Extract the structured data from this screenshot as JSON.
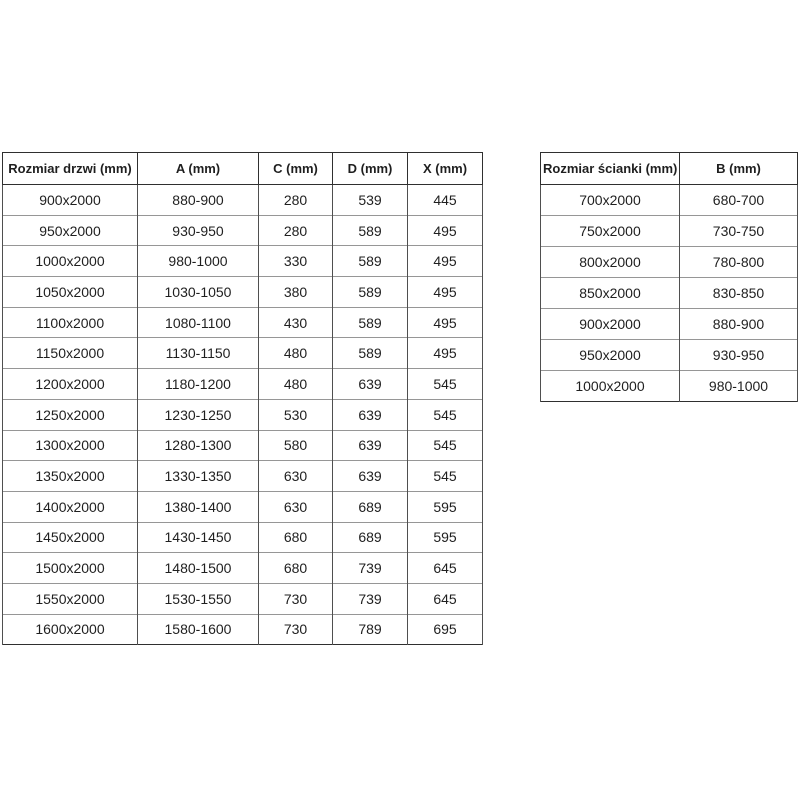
{
  "page": {
    "background_color": "#ffffff",
    "text_color": "#1f1f1f",
    "border_color": "#2f2f2f"
  },
  "doors_table": {
    "headers": [
      "Rozmiar drzwi (mm)",
      "A (mm)",
      "C (mm)",
      "D (mm)",
      "X (mm)"
    ],
    "rows": [
      [
        "900x2000",
        "880-900",
        "280",
        "539",
        "445"
      ],
      [
        "950x2000",
        "930-950",
        "280",
        "589",
        "495"
      ],
      [
        "1000x2000",
        "980-1000",
        "330",
        "589",
        "495"
      ],
      [
        "1050x2000",
        "1030-1050",
        "380",
        "589",
        "495"
      ],
      [
        "1100x2000",
        "1080-1100",
        "430",
        "589",
        "495"
      ],
      [
        "1150x2000",
        "1130-1150",
        "480",
        "589",
        "495"
      ],
      [
        "1200x2000",
        "1180-1200",
        "480",
        "639",
        "545"
      ],
      [
        "1250x2000",
        "1230-1250",
        "530",
        "639",
        "545"
      ],
      [
        "1300x2000",
        "1280-1300",
        "580",
        "639",
        "545"
      ],
      [
        "1350x2000",
        "1330-1350",
        "630",
        "639",
        "545"
      ],
      [
        "1400x2000",
        "1380-1400",
        "630",
        "689",
        "595"
      ],
      [
        "1450x2000",
        "1430-1450",
        "680",
        "689",
        "595"
      ],
      [
        "1500x2000",
        "1480-1500",
        "680",
        "739",
        "645"
      ],
      [
        "1550x2000",
        "1530-1550",
        "730",
        "739",
        "645"
      ],
      [
        "1600x2000",
        "1580-1600",
        "730",
        "789",
        "695"
      ]
    ]
  },
  "walls_table": {
    "headers": [
      "Rozmiar ścianki (mm)",
      "B (mm)"
    ],
    "rows": [
      [
        "700x2000",
        "680-700"
      ],
      [
        "750x2000",
        "730-750"
      ],
      [
        "800x2000",
        "780-800"
      ],
      [
        "850x2000",
        "830-850"
      ],
      [
        "900x2000",
        "880-900"
      ],
      [
        "950x2000",
        "930-950"
      ],
      [
        "1000x2000",
        "980-1000"
      ]
    ]
  }
}
